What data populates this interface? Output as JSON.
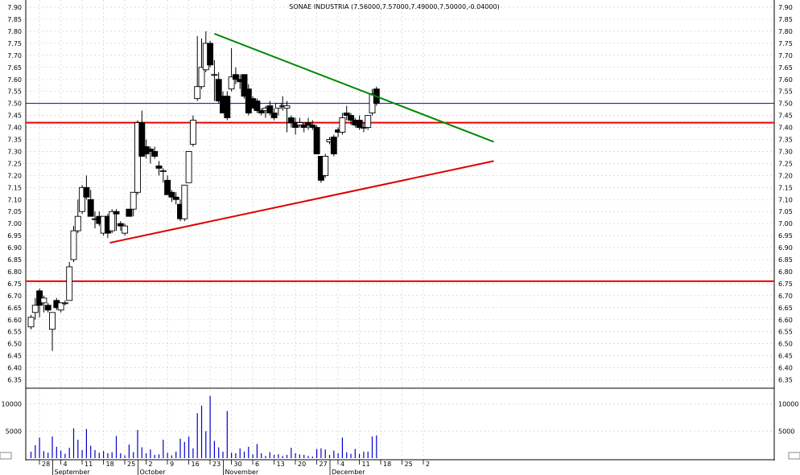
{
  "chart_data": {
    "type": "candlestick",
    "title": "SONAE INDUSTRIA (7.56000,7.57000,7.49000,7.50000,-0.04000)",
    "price_ylim": [
      6.3,
      7.95
    ],
    "price_ticks": [
      "6.35",
      "6.40",
      "6.45",
      "6.50",
      "6.55",
      "6.60",
      "6.65",
      "6.70",
      "6.75",
      "6.80",
      "6.85",
      "6.90",
      "6.95",
      "7.00",
      "7.05",
      "7.10",
      "7.15",
      "7.20",
      "7.25",
      "7.30",
      "7.35",
      "7.40",
      "7.45",
      "7.50",
      "7.55",
      "7.60",
      "7.65",
      "7.70",
      "7.75",
      "7.80",
      "7.85",
      "7.90"
    ],
    "volume_ticks": [
      "5000",
      "10000"
    ],
    "volume_ylim": [
      0,
      12000
    ],
    "date_ticks": [
      "28",
      "4",
      "11",
      "18",
      "25",
      "2",
      "9",
      "16",
      "23",
      "30",
      "6",
      "13",
      "20",
      "27",
      "4",
      "11",
      "18",
      "25",
      "2"
    ],
    "month_labels": [
      "September",
      "October",
      "November",
      "December"
    ],
    "grid": true,
    "horizontal_lines": [
      {
        "value": 7.5,
        "color": "#0000cc"
      },
      {
        "value": 7.42,
        "color": "#ee0000"
      },
      {
        "value": 6.76,
        "color": "#ee0000"
      }
    ],
    "trend_lines": [
      {
        "color": "#008800",
        "from": [
          8.2,
          7.79
        ],
        "to": [
          21.3,
          7.34
        ]
      },
      {
        "color": "#dd0000",
        "from": [
          3.3,
          6.92
        ],
        "to": [
          21.3,
          7.26
        ]
      }
    ],
    "candles": [
      {
        "o": 6.57,
        "h": 6.62,
        "l": 6.56,
        "c": 6.61,
        "v": 1200
      },
      {
        "o": 6.63,
        "h": 6.69,
        "l": 6.6,
        "c": 6.66,
        "v": 2400
      },
      {
        "o": 6.72,
        "h": 6.73,
        "l": 6.61,
        "c": 6.66,
        "v": 3800
      },
      {
        "o": 6.67,
        "h": 6.7,
        "l": 6.63,
        "c": 6.69,
        "v": 1300
      },
      {
        "o": 6.66,
        "h": 6.67,
        "l": 6.63,
        "c": 6.64,
        "v": 1000
      },
      {
        "o": 6.56,
        "h": 6.63,
        "l": 6.47,
        "c": 6.63,
        "v": 4000
      },
      {
        "o": 6.68,
        "h": 6.69,
        "l": 6.64,
        "c": 6.65,
        "v": 2100
      },
      {
        "o": 6.64,
        "h": 6.67,
        "l": 6.63,
        "c": 6.67,
        "v": 1400
      },
      {
        "o": 6.67,
        "h": 6.68,
        "l": 6.66,
        "c": 6.67,
        "v": 800
      },
      {
        "o": 6.68,
        "h": 6.84,
        "l": 6.68,
        "c": 6.82,
        "v": 1900
      },
      {
        "o": 6.85,
        "h": 6.99,
        "l": 6.84,
        "c": 6.97,
        "v": 5500
      },
      {
        "o": 6.97,
        "h": 7.1,
        "l": 6.96,
        "c": 7.03,
        "v": 3400
      },
      {
        "o": 7.05,
        "h": 7.16,
        "l": 7.04,
        "c": 7.15,
        "v": 1500
      },
      {
        "o": 7.15,
        "h": 7.2,
        "l": 7.1,
        "c": 7.11,
        "v": 5400
      },
      {
        "o": 7.1,
        "h": 7.14,
        "l": 7.03,
        "c": 7.03,
        "v": 2300
      },
      {
        "o": 7.02,
        "h": 7.05,
        "l": 6.98,
        "c": 7.02,
        "v": 1500
      },
      {
        "o": 7.03,
        "h": 7.05,
        "l": 6.99,
        "c": 7.0,
        "v": 1000
      },
      {
        "o": 6.96,
        "h": 7.03,
        "l": 6.95,
        "c": 7.03,
        "v": 1300
      },
      {
        "o": 7.03,
        "h": 7.04,
        "l": 6.94,
        "c": 6.96,
        "v": 900
      },
      {
        "o": 6.97,
        "h": 7.06,
        "l": 6.96,
        "c": 7.05,
        "v": 1100
      },
      {
        "o": 7.05,
        "h": 7.06,
        "l": 6.97,
        "c": 7.04,
        "v": 4100
      },
      {
        "o": 7.0,
        "h": 7.01,
        "l": 6.97,
        "c": 6.99,
        "v": 900
      },
      {
        "o": 6.96,
        "h": 7.0,
        "l": 6.95,
        "c": 6.99,
        "v": 500
      },
      {
        "o": 7.06,
        "h": 7.06,
        "l": 7.03,
        "c": 7.03,
        "v": 2500
      },
      {
        "o": 7.06,
        "h": 7.13,
        "l": 7.03,
        "c": 7.13,
        "v": 1100
      },
      {
        "o": 7.13,
        "h": 7.43,
        "l": 7.12,
        "c": 7.42,
        "v": 5200
      },
      {
        "o": 7.42,
        "h": 7.47,
        "l": 7.28,
        "c": 7.28,
        "v": 2000
      },
      {
        "o": 7.32,
        "h": 7.35,
        "l": 7.27,
        "c": 7.29,
        "v": 900
      },
      {
        "o": 7.31,
        "h": 7.32,
        "l": 7.25,
        "c": 7.3,
        "v": 1600
      },
      {
        "o": 7.3,
        "h": 7.32,
        "l": 7.27,
        "c": 7.28,
        "v": 600
      },
      {
        "o": 7.24,
        "h": 7.26,
        "l": 7.2,
        "c": 7.23,
        "v": 700
      },
      {
        "o": 7.22,
        "h": 7.23,
        "l": 7.17,
        "c": 7.22,
        "v": 3400
      },
      {
        "o": 7.18,
        "h": 7.2,
        "l": 7.12,
        "c": 7.12,
        "v": 1000
      },
      {
        "o": 7.13,
        "h": 7.14,
        "l": 7.09,
        "c": 7.11,
        "v": 500
      },
      {
        "o": 7.11,
        "h": 7.13,
        "l": 7.08,
        "c": 7.1,
        "v": 1200
      },
      {
        "o": 7.08,
        "h": 7.1,
        "l": 7.01,
        "c": 7.02,
        "v": 3600
      },
      {
        "o": 7.02,
        "h": 7.16,
        "l": 7.01,
        "c": 7.16,
        "v": 3000
      },
      {
        "o": 7.17,
        "h": 7.3,
        "l": 7.17,
        "c": 7.3,
        "v": 4000
      },
      {
        "o": 7.33,
        "h": 7.45,
        "l": 7.32,
        "c": 7.43,
        "v": 1800
      },
      {
        "o": 7.52,
        "h": 7.78,
        "l": 7.51,
        "c": 7.57,
        "v": 8300
      },
      {
        "o": 7.57,
        "h": 7.77,
        "l": 7.56,
        "c": 7.65,
        "v": 9700
      },
      {
        "o": 7.64,
        "h": 7.8,
        "l": 7.63,
        "c": 7.75,
        "v": 5000
      },
      {
        "o": 7.75,
        "h": 7.76,
        "l": 7.65,
        "c": 7.66,
        "v": 11500
      },
      {
        "o": 7.62,
        "h": 7.68,
        "l": 7.51,
        "c": 7.62,
        "v": 3200
      },
      {
        "o": 7.6,
        "h": 7.63,
        "l": 7.5,
        "c": 7.51,
        "v": 2000
      },
      {
        "o": 7.53,
        "h": 7.55,
        "l": 7.46,
        "c": 7.46,
        "v": 1200
      },
      {
        "o": 7.53,
        "h": 7.55,
        "l": 7.43,
        "c": 7.44,
        "v": 8700
      },
      {
        "o": 7.56,
        "h": 7.73,
        "l": 7.55,
        "c": 7.61,
        "v": 1000
      },
      {
        "o": 7.62,
        "h": 7.65,
        "l": 7.58,
        "c": 7.6,
        "v": 900
      },
      {
        "o": 7.6,
        "h": 7.62,
        "l": 7.56,
        "c": 7.59,
        "v": 1800
      },
      {
        "o": 7.62,
        "h": 7.62,
        "l": 7.52,
        "c": 7.53,
        "v": 1200
      },
      {
        "o": 7.56,
        "h": 7.58,
        "l": 7.45,
        "c": 7.46,
        "v": 2100
      },
      {
        "o": 7.52,
        "h": 7.53,
        "l": 7.48,
        "c": 7.48,
        "v": 700
      },
      {
        "o": 7.51,
        "h": 7.52,
        "l": 7.46,
        "c": 7.47,
        "v": 2600
      },
      {
        "o": 7.47,
        "h": 7.48,
        "l": 7.45,
        "c": 7.46,
        "v": 900
      },
      {
        "o": 7.47,
        "h": 7.49,
        "l": 7.44,
        "c": 7.48,
        "v": 400
      },
      {
        "o": 7.49,
        "h": 7.51,
        "l": 7.45,
        "c": 7.46,
        "v": 1100
      },
      {
        "o": 7.46,
        "h": 7.48,
        "l": 7.43,
        "c": 7.44,
        "v": 600
      },
      {
        "o": 7.48,
        "h": 7.5,
        "l": 7.45,
        "c": 7.5,
        "v": 700
      },
      {
        "o": 7.49,
        "h": 7.53,
        "l": 7.47,
        "c": 7.49,
        "v": 400
      },
      {
        "o": 7.48,
        "h": 7.51,
        "l": 7.38,
        "c": 7.49,
        "v": 600
      },
      {
        "o": 7.44,
        "h": 7.45,
        "l": 7.4,
        "c": 7.42,
        "v": 1900
      },
      {
        "o": 7.42,
        "h": 7.44,
        "l": 7.37,
        "c": 7.4,
        "v": 900
      },
      {
        "o": 7.41,
        "h": 7.44,
        "l": 7.4,
        "c": 7.42,
        "v": 700
      },
      {
        "o": 7.41,
        "h": 7.42,
        "l": 7.38,
        "c": 7.4,
        "v": 600
      },
      {
        "o": 7.42,
        "h": 7.44,
        "l": 7.39,
        "c": 7.41,
        "v": 400
      },
      {
        "o": 7.41,
        "h": 7.43,
        "l": 7.39,
        "c": 7.4,
        "v": 300
      },
      {
        "o": 7.4,
        "h": 7.41,
        "l": 7.29,
        "c": 7.29,
        "v": 1700
      },
      {
        "o": 7.28,
        "h": 7.28,
        "l": 7.17,
        "c": 7.18,
        "v": 1800
      },
      {
        "o": 7.2,
        "h": 7.29,
        "l": 7.19,
        "c": 7.28,
        "v": 1600
      },
      {
        "o": 7.34,
        "h": 7.36,
        "l": 7.33,
        "c": 7.35,
        "v": 600
      },
      {
        "o": 7.36,
        "h": 7.37,
        "l": 7.28,
        "c": 7.29,
        "v": 1400
      },
      {
        "o": 7.39,
        "h": 7.4,
        "l": 7.36,
        "c": 7.38,
        "v": 900
      },
      {
        "o": 7.38,
        "h": 7.46,
        "l": 7.37,
        "c": 7.44,
        "v": 3800
      },
      {
        "o": 7.46,
        "h": 7.49,
        "l": 7.43,
        "c": 7.45,
        "v": 1100
      },
      {
        "o": 7.45,
        "h": 7.46,
        "l": 7.41,
        "c": 7.43,
        "v": 800
      },
      {
        "o": 7.43,
        "h": 7.44,
        "l": 7.4,
        "c": 7.41,
        "v": 1700
      },
      {
        "o": 7.43,
        "h": 7.45,
        "l": 7.39,
        "c": 7.4,
        "v": 800
      },
      {
        "o": 7.4,
        "h": 7.42,
        "l": 7.38,
        "c": 7.4,
        "v": 1200
      },
      {
        "o": 7.4,
        "h": 7.45,
        "l": 7.39,
        "c": 7.45,
        "v": 1200
      },
      {
        "o": 7.46,
        "h": 7.56,
        "l": 7.45,
        "c": 7.54,
        "v": 4000
      },
      {
        "o": 7.56,
        "h": 7.57,
        "l": 7.49,
        "c": 7.5,
        "v": 4200
      }
    ]
  }
}
